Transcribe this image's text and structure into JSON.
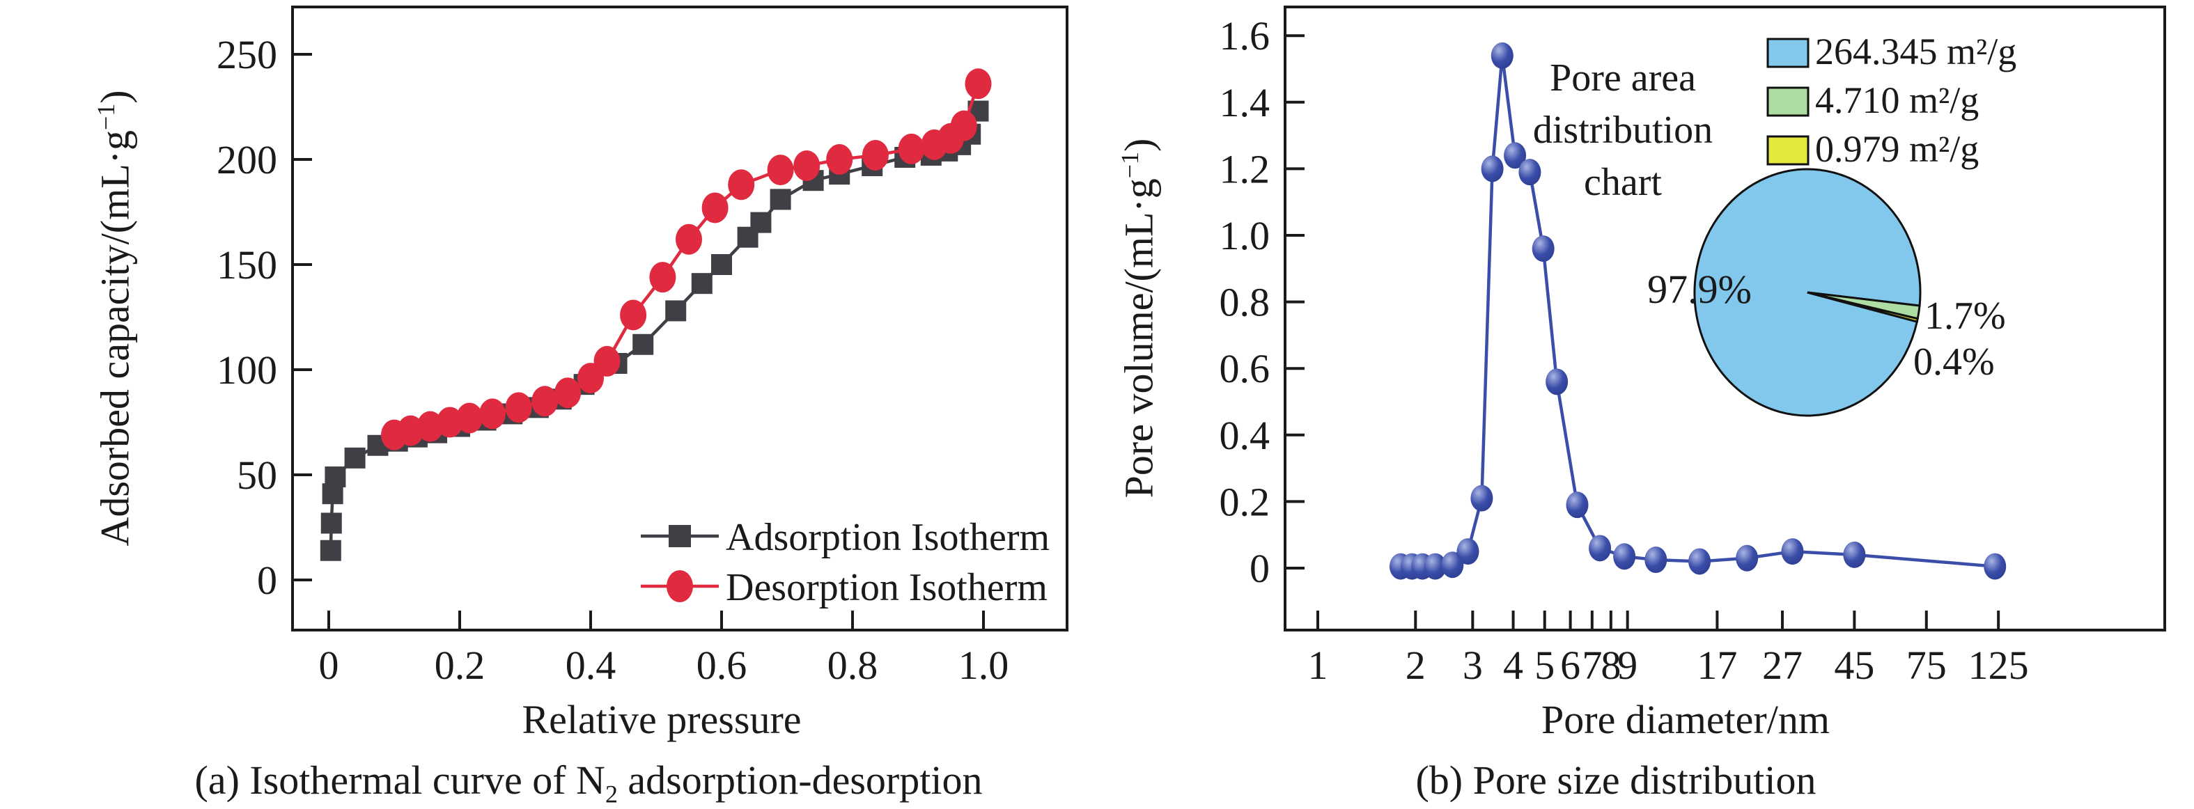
{
  "figure": {
    "caption_a": {
      "pre": "(a) Isothermal curve of N",
      "sub": "2",
      "post": " adsorption-desorption"
    },
    "caption_b": "(b) Pore size distribution"
  },
  "chart_data": [
    {
      "type": "line",
      "panel": "a",
      "title": "",
      "xlabel": "Relative pressure",
      "ylabel_parts": {
        "pre": "Adsorbed capacity/(mL·g",
        "sup": "−1",
        "post": ")"
      },
      "xlim": [
        -0.055,
        1.125
      ],
      "ylim": [
        -24,
        272
      ],
      "grid": false,
      "legend_position": "inside-bottom-right",
      "x_ticks": [
        {
          "v": 0,
          "t": "0"
        },
        {
          "v": 0.2,
          "t": "0.2"
        },
        {
          "v": 0.4,
          "t": "0.4"
        },
        {
          "v": 0.6,
          "t": "0.6"
        },
        {
          "v": 0.8,
          "t": "0.8"
        },
        {
          "v": 1.0,
          "t": "1.0"
        }
      ],
      "y_ticks": [
        {
          "v": 0,
          "t": "0"
        },
        {
          "v": 50,
          "t": "50"
        },
        {
          "v": 100,
          "t": "100"
        },
        {
          "v": 150,
          "t": "150"
        },
        {
          "v": 200,
          "t": "200"
        },
        {
          "v": 250,
          "t": "250"
        }
      ],
      "series": [
        {
          "name": "Adsorption Isotherm",
          "marker": "square",
          "color": "#3f3f45",
          "points": [
            [
              0.003,
              14
            ],
            [
              0.004,
              27
            ],
            [
              0.006,
              41
            ],
            [
              0.01,
              49
            ],
            [
              0.04,
              58
            ],
            [
              0.075,
              64
            ],
            [
              0.105,
              66
            ],
            [
              0.135,
              68
            ],
            [
              0.165,
              70
            ],
            [
              0.2,
              73
            ],
            [
              0.24,
              76
            ],
            [
              0.28,
              79
            ],
            [
              0.32,
              82
            ],
            [
              0.355,
              86
            ],
            [
              0.39,
              93
            ],
            [
              0.44,
              103
            ],
            [
              0.48,
              112
            ],
            [
              0.53,
              128
            ],
            [
              0.57,
              141
            ],
            [
              0.6,
              150
            ],
            [
              0.64,
              163
            ],
            [
              0.66,
              170
            ],
            [
              0.69,
              181
            ],
            [
              0.74,
              190
            ],
            [
              0.78,
              193
            ],
            [
              0.83,
              197
            ],
            [
              0.88,
              201
            ],
            [
              0.92,
              202
            ],
            [
              0.945,
              204
            ],
            [
              0.965,
              207
            ],
            [
              0.98,
              212
            ],
            [
              0.992,
              223
            ]
          ]
        },
        {
          "name": "Desorption Isotherm",
          "marker": "circle",
          "color": "#e02a40",
          "points": [
            [
              0.1,
              69
            ],
            [
              0.125,
              71
            ],
            [
              0.155,
              73
            ],
            [
              0.185,
              75
            ],
            [
              0.215,
              77
            ],
            [
              0.25,
              79
            ],
            [
              0.29,
              82
            ],
            [
              0.33,
              85
            ],
            [
              0.365,
              89
            ],
            [
              0.4,
              96
            ],
            [
              0.425,
              104
            ],
            [
              0.465,
              126
            ],
            [
              0.51,
              144
            ],
            [
              0.55,
              162
            ],
            [
              0.59,
              177
            ],
            [
              0.63,
              188
            ],
            [
              0.69,
              195
            ],
            [
              0.73,
              197
            ],
            [
              0.78,
              200
            ],
            [
              0.835,
              202
            ],
            [
              0.89,
              205
            ],
            [
              0.925,
              207
            ],
            [
              0.95,
              210
            ],
            [
              0.97,
              216
            ],
            [
              0.992,
              236
            ]
          ]
        }
      ]
    },
    {
      "type": "line",
      "panel": "b",
      "title": "",
      "xscale": "log",
      "xlabel": "Pore diameter/nm",
      "ylabel_parts": {
        "pre": "Pore volume/(mL·g",
        "sup": "−1",
        "post": ")"
      },
      "xlim": [
        0.79,
        406
      ],
      "ylim": [
        -0.19,
        1.69
      ],
      "grid": false,
      "x_ticks": [
        {
          "v": 1,
          "t": "1"
        },
        {
          "v": 2,
          "t": "2"
        },
        {
          "v": 3,
          "t": "3"
        },
        {
          "v": 4,
          "t": "4"
        },
        {
          "v": 5,
          "t": "5"
        },
        {
          "v": 6,
          "t": "6"
        },
        {
          "v": 7,
          "t": "7"
        },
        {
          "v": 8,
          "t": "8"
        },
        {
          "v": 9,
          "t": "9"
        },
        {
          "v": 17,
          "t": "17"
        },
        {
          "v": 27,
          "t": "27"
        },
        {
          "v": 45,
          "t": "45"
        },
        {
          "v": 75,
          "t": "75"
        },
        {
          "v": 125,
          "t": "125"
        }
      ],
      "y_ticks": [
        {
          "v": 0,
          "t": "0"
        },
        {
          "v": 0.2,
          "t": "0.2"
        },
        {
          "v": 0.4,
          "t": "0.4"
        },
        {
          "v": 0.6,
          "t": "0.6"
        },
        {
          "v": 0.8,
          "t": "0.8"
        },
        {
          "v": 1.0,
          "t": "1.0"
        },
        {
          "v": 1.2,
          "t": "1.2"
        },
        {
          "v": 1.4,
          "t": "1.4"
        },
        {
          "v": 1.6,
          "t": "1.6"
        }
      ],
      "series": [
        {
          "name": "Pore volume",
          "marker": "sphere",
          "color": "#3a4da8",
          "points": [
            [
              1.8,
              0.005
            ],
            [
              1.95,
              0.005
            ],
            [
              2.1,
              0.005
            ],
            [
              2.3,
              0.005
            ],
            [
              2.6,
              0.01
            ],
            [
              2.9,
              0.05
            ],
            [
              3.2,
              0.21
            ],
            [
              3.45,
              1.2
            ],
            [
              3.7,
              1.54
            ],
            [
              4.05,
              1.24
            ],
            [
              4.5,
              1.19
            ],
            [
              4.95,
              0.96
            ],
            [
              5.45,
              0.56
            ],
            [
              6.3,
              0.19
            ],
            [
              7.4,
              0.06
            ],
            [
              8.8,
              0.035
            ],
            [
              11,
              0.025
            ],
            [
              15,
              0.02
            ],
            [
              21,
              0.03
            ],
            [
              29,
              0.05
            ],
            [
              45,
              0.04
            ],
            [
              122,
              0.005
            ]
          ]
        }
      ],
      "inset_pie": {
        "type": "pie",
        "title_lines": [
          "Pore area",
          "distribution",
          "chart"
        ],
        "slices": [
          {
            "legend": "264.345 m²/g",
            "pct": 97.9,
            "label": "97.9%",
            "color": "#82c7ec"
          },
          {
            "legend": "4.710 m²/g",
            "pct": 1.7,
            "label": "1.7%",
            "color": "#aedda4"
          },
          {
            "legend": "0.979 m²/g",
            "pct": 0.4,
            "label": "0.4%",
            "color": "#e3e93e"
          }
        ]
      }
    }
  ]
}
